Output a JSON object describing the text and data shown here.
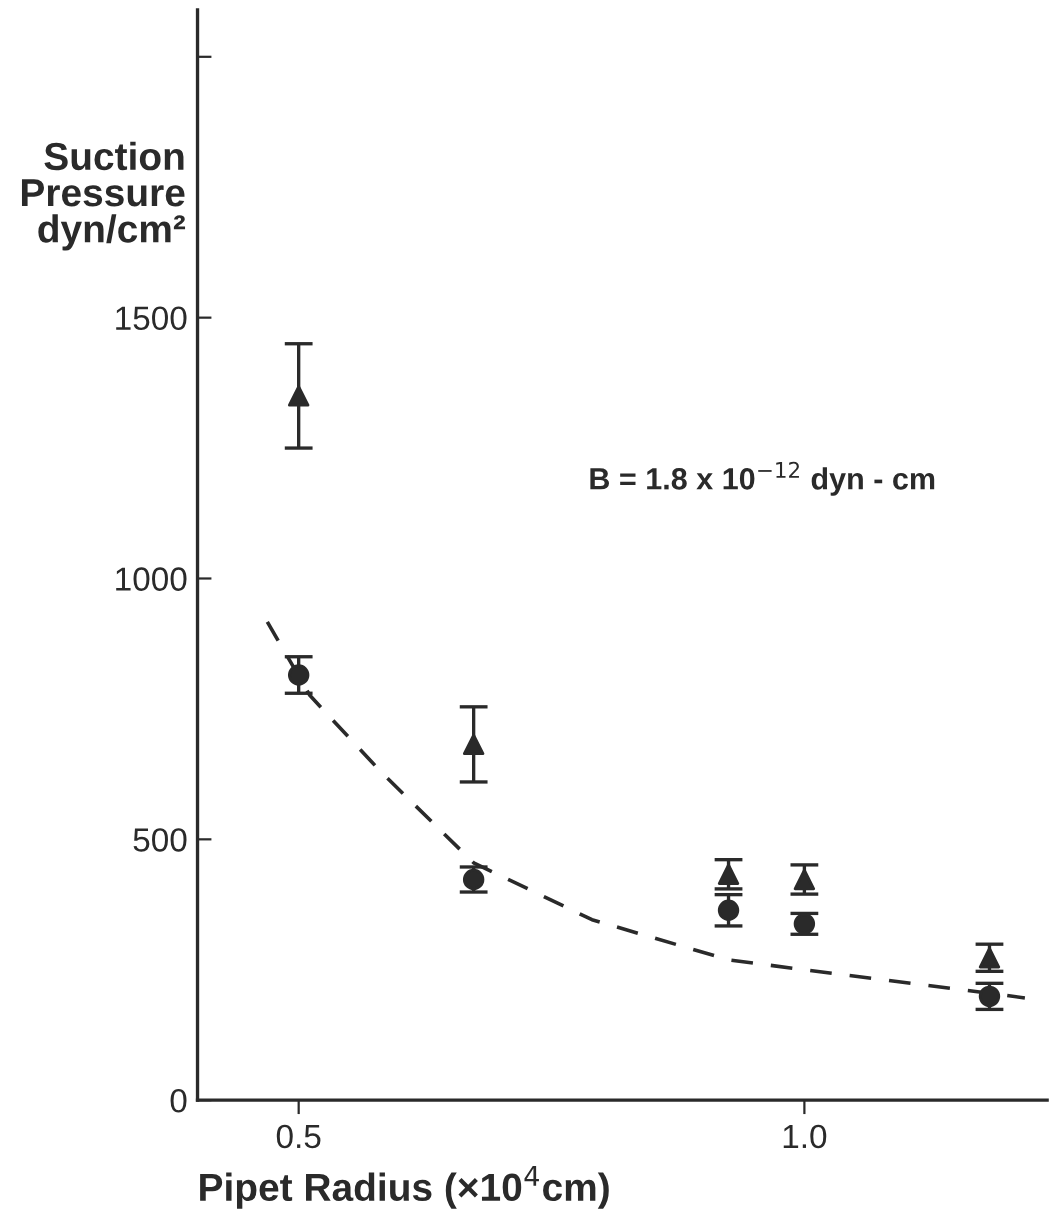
{
  "chart_data": {
    "type": "scatter",
    "xlabel": "Pipet Radius (×10$^{4}$cm)",
    "ylabel": "Suction\nPressure\ndyn/cm²",
    "annotations": [
      "B = 1.8 x 10$^{−12}$ dyn - cm"
    ],
    "xlim": [
      0.4,
      1.24
    ],
    "xticks": [
      0.5,
      {
        "value": 1.0,
        "label": "1.0"
      }
    ],
    "ylim": [
      0,
      2090
    ],
    "yticks": [
      0,
      500,
      1000,
      1500,
      {
        "value": 2000,
        "label": null
      }
    ],
    "grid": false,
    "series": [
      {
        "marker": "circle",
        "color": "#2a2a2a",
        "x": [
          0.5,
          0.673,
          0.925,
          1.0,
          1.183
        ],
        "values": [
          815,
          423,
          364,
          338,
          199
        ],
        "errors": [
          35,
          24,
          30,
          20,
          25
        ]
      },
      {
        "marker": "triangle",
        "color": "#2a2a2a",
        "x": [
          0.5,
          0.673,
          0.925,
          1.0,
          1.183
        ],
        "values": [
          1350,
          682,
          433,
          423,
          273
        ],
        "errors": [
          100,
          72,
          28,
          28,
          26
        ]
      },
      {
        "type": "line",
        "line_style": "dashed",
        "marker": "none",
        "color": "#2a2a2a",
        "x": [
          0.469,
          0.511,
          0.582,
          0.673,
          0.79,
          0.925,
          1.0,
          1.183,
          1.218
        ],
        "values": [
          917,
          776,
          628,
          455,
          346,
          269,
          250,
          205,
          196
        ]
      }
    ]
  }
}
